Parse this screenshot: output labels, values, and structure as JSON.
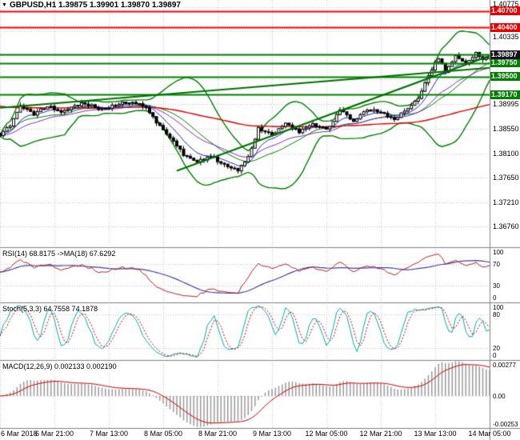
{
  "window": {
    "menu_icon": "▼",
    "title": "GBPUSD,H1 1.39875 1.39901 1.39870 1.39897"
  },
  "colors": {
    "background": "#FFFFFF",
    "grid": "#C6C6C6",
    "separator": "#808080",
    "candle_up_fill": "#FFFFFF",
    "candle_down_fill": "#000000",
    "candle_outline": "#000000",
    "bollinger": "#008000",
    "trendline": "#007000",
    "ma_slow": "#DD0000",
    "ma_fast": "#2222CC",
    "ma_mid": "#7B2FBE",
    "resistance_line": "#FF0000",
    "support_line": "#008000",
    "resistance_label_bg": "#E80000",
    "support_label_bg": "#008000",
    "bid_label_bg": "#14141E",
    "rsi_line": "#B22222",
    "rsi_ma_line": "#4040A0",
    "stoch_main": "#00AEAE",
    "stoch_signal": "#CC0000",
    "macd_hist": "#9A9A9A",
    "macd_signal": "#CC0000"
  },
  "chart_data": {
    "type": "candlestick",
    "symbol": "GBPUSD",
    "timeframe": "H1",
    "ohlc_quote": {
      "open": "1.39875",
      "high": "1.39901",
      "low": "1.39870",
      "close": "1.39897"
    },
    "bars_total": 145,
    "bars_per_label": 16,
    "x_labels": [
      "6 Mar 2018",
      "6 Mar 21:00",
      "7 Mar 13:00",
      "8 Mar 05:00",
      "8 Mar 21:00",
      "9 Mar 13:00",
      "12 Mar 05:00",
      "12 Mar 21:00",
      "13 Mar 13:00",
      "14 Mar 05:00"
    ],
    "price_axis": {
      "range_top": 1.409,
      "range_bottom": 1.364,
      "tick_labels": [
        "1.40775",
        "1.40335",
        "1.38995",
        "1.38550",
        "1.38100",
        "1.37650",
        "1.37210",
        "1.36760"
      ],
      "tick_values": [
        1.40775,
        1.40335,
        1.38995,
        1.3855,
        1.381,
        1.3765,
        1.3721,
        1.3676
      ],
      "grid_values": [
        1.40775,
        1.40335,
        1.39895,
        1.3945,
        1.38995,
        1.3855,
        1.381,
        1.3765,
        1.3721,
        1.3676
      ]
    },
    "price_path": [
      [
        0,
        1.3845
      ],
      [
        3,
        1.3862
      ],
      [
        6,
        1.3898
      ],
      [
        10,
        1.3882
      ],
      [
        14,
        1.3896
      ],
      [
        18,
        1.3887
      ],
      [
        24,
        1.3902
      ],
      [
        30,
        1.389
      ],
      [
        36,
        1.3904
      ],
      [
        42,
        1.3898
      ],
      [
        46,
        1.3868
      ],
      [
        50,
        1.3838
      ],
      [
        54,
        1.3808
      ],
      [
        58,
        1.3794
      ],
      [
        62,
        1.3806
      ],
      [
        66,
        1.3788
      ],
      [
        70,
        1.3778
      ],
      [
        73,
        1.3802
      ],
      [
        76,
        1.3856
      ],
      [
        80,
        1.3844
      ],
      [
        84,
        1.3866
      ],
      [
        88,
        1.385
      ],
      [
        92,
        1.3862
      ],
      [
        96,
        1.3852
      ],
      [
        100,
        1.3888
      ],
      [
        104,
        1.387
      ],
      [
        108,
        1.389
      ],
      [
        112,
        1.3886
      ],
      [
        116,
        1.3872
      ],
      [
        120,
        1.3892
      ],
      [
        123,
        1.3912
      ],
      [
        126,
        1.3952
      ],
      [
        129,
        1.3985
      ],
      [
        131,
        1.396
      ],
      [
        134,
        1.3988
      ],
      [
        137,
        1.3974
      ],
      [
        140,
        1.3992
      ],
      [
        142,
        1.3979
      ],
      [
        144,
        1.39897
      ]
    ],
    "levels": [
      {
        "value": 1.407,
        "label": "1.40700",
        "kind": "resistance"
      },
      {
        "value": 1.404,
        "label": "1.40400",
        "kind": "resistance"
      },
      {
        "value": 1.399,
        "label": "",
        "kind": "support"
      },
      {
        "value": 1.3975,
        "label": "1.39750",
        "kind": "support"
      },
      {
        "value": 1.395,
        "label": "1.39500",
        "kind": "support"
      },
      {
        "value": 1.3917,
        "label": "1.39170",
        "kind": "support"
      }
    ],
    "bid": {
      "value": 1.39897,
      "label": "1.39897"
    },
    "trendlines": [
      {
        "from": [
          52,
          1.3778
        ],
        "to": [
          144,
          1.3988
        ]
      },
      {
        "from": [
          0,
          1.3893
        ],
        "to": [
          144,
          1.3966
        ]
      }
    ],
    "overlays": {
      "bollinger_period": 20,
      "bollinger_deviation": 2.4,
      "ma_slow_period": 120,
      "ma_fast_period": 8,
      "ma_mid_period": 21
    },
    "rsi": {
      "label": "RSI(14) 68.8175 ->MA(18) 67.6292",
      "period": 14,
      "ma_period": 18,
      "range": [
        0,
        100
      ],
      "guide_levels": [
        70,
        30
      ],
      "tick_labels": [
        "100",
        "70",
        "30",
        "0"
      ],
      "tick_values": [
        100,
        70,
        30,
        0
      ]
    },
    "stoch": {
      "label": "Stoch(5,3,3) 64.7558 74.1878",
      "k_period": 5,
      "d_period": 3,
      "slowing": 3,
      "range": [
        0,
        100
      ],
      "guide_levels": [
        80,
        20
      ],
      "tick_labels": [
        "100",
        "80",
        "20",
        "0"
      ],
      "tick_values": [
        100,
        80,
        20,
        0
      ]
    },
    "macd": {
      "label": "MACD(12,26,9) 0.002133 0.002190",
      "fast": 12,
      "slow": 26,
      "signal": 9,
      "range": [
        -0.00253,
        0.00277
      ],
      "tick_labels": [
        "0.00277",
        "0.00",
        "-0.00253"
      ],
      "tick_values": [
        0.00277,
        0,
        -0.00253
      ]
    }
  }
}
